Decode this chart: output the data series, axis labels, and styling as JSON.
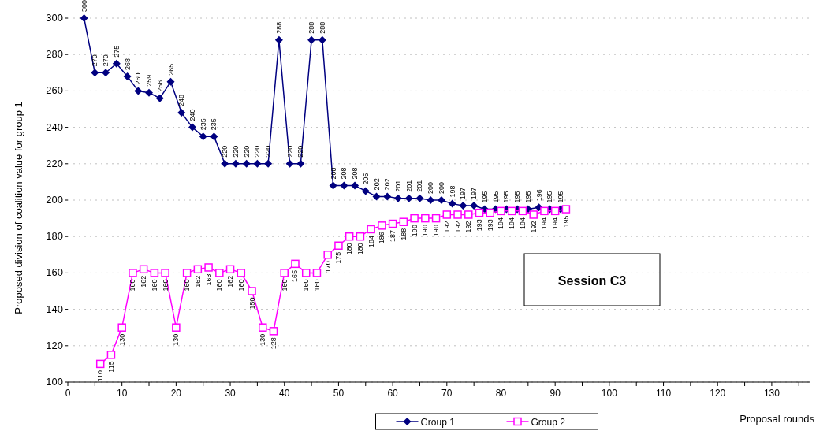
{
  "chart_data": {
    "type": "line",
    "xlabel": "Proposal rounds",
    "ylabel": "Proposed division of coalition value for group 1",
    "annotations": [
      "Session C3"
    ],
    "series": [
      {
        "name": "Group 1",
        "color": "#000080",
        "marker": "diamond",
        "x": [
          3,
          5,
          7,
          9,
          11,
          13,
          15,
          17,
          19,
          21,
          23,
          25,
          27,
          29,
          31,
          33,
          35,
          37,
          39,
          41,
          43,
          45,
          47,
          49,
          51,
          53,
          55,
          57,
          59,
          61,
          63,
          65,
          67,
          69,
          71,
          73,
          75,
          77,
          79,
          81,
          83,
          85,
          87,
          89,
          91
        ],
        "values": [
          300,
          270,
          270,
          275,
          268,
          260,
          259,
          256,
          265,
          248,
          240,
          235,
          235,
          220,
          220,
          220,
          220,
          220,
          288,
          220,
          220,
          288,
          288,
          208,
          208,
          208,
          205,
          202,
          202,
          201,
          201,
          201,
          200,
          200,
          198,
          197,
          197,
          195,
          195,
          195,
          195,
          195,
          196,
          195,
          195
        ]
      },
      {
        "name": "Group 2",
        "color": "#ff00ff",
        "marker": "square",
        "x": [
          6,
          8,
          10,
          12,
          14,
          16,
          18,
          20,
          22,
          24,
          26,
          28,
          30,
          32,
          34,
          36,
          38,
          40,
          42,
          44,
          46,
          48,
          50,
          52,
          54,
          56,
          58,
          60,
          62,
          64,
          66,
          68,
          70,
          72,
          74,
          76,
          78,
          80,
          82,
          84,
          86,
          88,
          90,
          92
        ],
        "values": [
          110,
          115,
          130,
          160,
          162,
          160,
          160,
          130,
          160,
          162,
          163,
          160,
          162,
          160,
          150,
          130,
          128,
          160,
          165,
          160,
          160,
          170,
          175,
          180,
          180,
          184,
          186,
          187,
          188,
          190,
          190,
          190,
          192,
          192,
          192,
          193,
          193,
          194,
          194,
          194,
          192,
          194,
          194,
          195
        ]
      }
    ],
    "xlim": [
      0,
      137
    ],
    "xticks": [
      0,
      {
        "value": 5,
        "label": null
      },
      10,
      {
        "value": 15,
        "label": null
      },
      20,
      {
        "value": 25,
        "label": null
      },
      30,
      {
        "value": 35,
        "label": null
      },
      40,
      {
        "value": 45,
        "label": null
      },
      50,
      {
        "value": 55,
        "label": null
      },
      60,
      {
        "value": 65,
        "label": null
      },
      70,
      {
        "value": 75,
        "label": null
      },
      80,
      {
        "value": 85,
        "label": null
      },
      90,
      {
        "value": 95,
        "label": null
      },
      100,
      {
        "value": 105,
        "label": null
      },
      110,
      {
        "value": 115,
        "label": null
      },
      120,
      {
        "value": 125,
        "label": null
      },
      130,
      {
        "value": 135,
        "label": null
      }
    ],
    "ylim": [
      100,
      300
    ],
    "yticks": [
      100,
      120,
      140,
      160,
      180,
      200,
      220,
      240,
      260,
      280,
      300
    ],
    "grid": "y",
    "legend": "bottom",
    "data_labels": true,
    "line_style": "solid"
  }
}
